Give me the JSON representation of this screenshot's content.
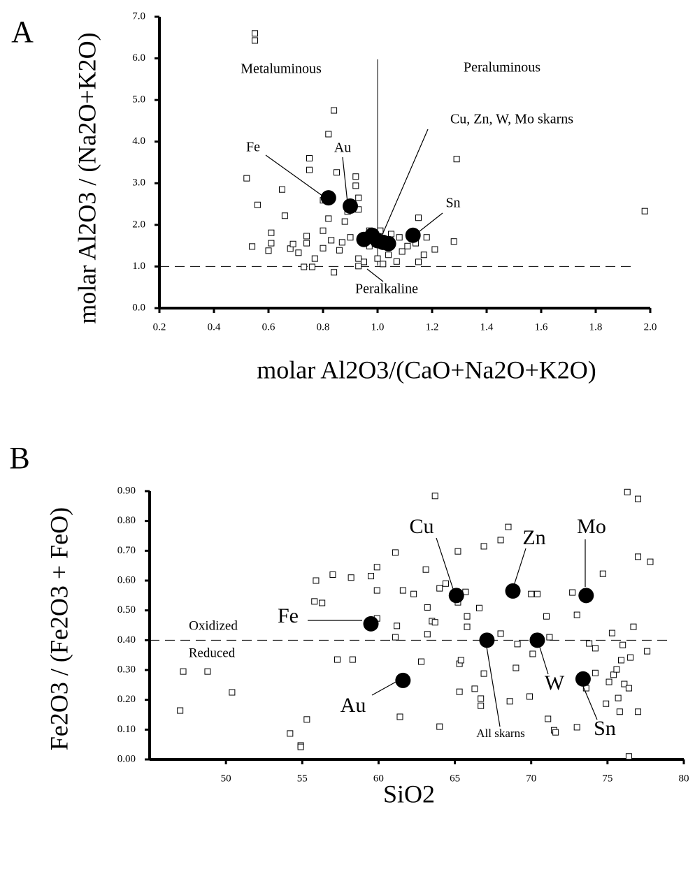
{
  "chart_data": [
    {
      "type": "scatter",
      "title": "A",
      "x_label": "molar Al2O3/(CaO+Na2O+K2O)",
      "y_label": "molar Al2O3 / (Na2O+K2O)",
      "xlim": [
        0.2,
        2.0
      ],
      "ylim": [
        0,
        7
      ],
      "xticks": [
        0.2,
        0.4,
        0.6,
        0.8,
        {
          "value": 1,
          "label": "1.0"
        },
        1.2,
        1.4,
        1.6,
        1.8,
        {
          "value": 2,
          "label": "2.0"
        }
      ],
      "yticks": [
        {
          "value": 0,
          "label": "0.0"
        },
        {
          "value": 1,
          "label": "1.0"
        },
        {
          "value": 2,
          "label": "2.0"
        },
        {
          "value": 3,
          "label": "3.0"
        },
        {
          "value": 4,
          "label": "4.0"
        },
        {
          "value": 5,
          "label": "5.0"
        },
        {
          "value": 6,
          "label": "6.0"
        },
        {
          "value": 7,
          "label": "7.0"
        }
      ],
      "reference_lines": {
        "y": [
          1.0
        ],
        "x": [
          1.0
        ]
      },
      "annotations": [
        "Metaluminous",
        "Peraluminous",
        "Cu, Zn, W, Mo skarns",
        "Fe",
        "Au",
        "Sn",
        "Peralkaline"
      ],
      "series": [
        {
          "marker": "square",
          "color": "#000000",
          "x": [
            0.55,
            0.55,
            0.84,
            0.82,
            0.75,
            0.75,
            0.52,
            1.29,
            0.85,
            0.92,
            0.92,
            0.65,
            0.56,
            0.66,
            0.93,
            0.8,
            0.89,
            0.93,
            0.82,
            0.61,
            0.88,
            1.15,
            1.28,
            1.98,
            0.54,
            0.6,
            0.68,
            0.74,
            0.8,
            0.71,
            0.73,
            0.76,
            0.77,
            0.8,
            0.84,
            0.86,
            0.83,
            0.87,
            0.9,
            0.93,
            0.95,
            0.97,
            1.0,
            1.02,
            1.04,
            1.07,
            1.09,
            1.11,
            1.14,
            1.17,
            1.18,
            1.21,
            1.15,
            0.97,
            1.01,
            1.05,
            1.08,
            0.93,
            0.74,
            0.69,
            0.61
          ],
          "values": [
            6.6,
            6.43,
            4.75,
            4.18,
            3.6,
            3.32,
            3.12,
            3.58,
            3.26,
            3.16,
            2.94,
            2.85,
            2.48,
            2.22,
            2.65,
            2.59,
            2.32,
            2.37,
            2.15,
            1.81,
            2.08,
            2.17,
            1.6,
            2.33,
            1.48,
            1.38,
            1.43,
            1.73,
            1.86,
            1.33,
            0.99,
            0.99,
            1.19,
            1.44,
            0.86,
            1.39,
            1.63,
            1.58,
            1.7,
            1.19,
            1.11,
            1.49,
            1.19,
            1.06,
            1.28,
            1.12,
            1.36,
            1.49,
            1.56,
            1.28,
            1.7,
            1.41,
            1.11,
            1.86,
            1.86,
            1.78,
            1.7,
            1.01,
            1.56,
            1.54,
            1.56
          ]
        },
        {
          "marker": "circle",
          "color": "#000000",
          "x": [
            0.82,
            0.9,
            1.13,
            0.95,
            0.98,
            1.0,
            1.02,
            1.04
          ],
          "values": [
            2.65,
            2.45,
            1.75,
            1.65,
            1.75,
            1.62,
            1.58,
            1.55
          ]
        }
      ]
    },
    {
      "type": "scatter",
      "title": "B",
      "x_label": "SiO2",
      "y_label": "Fe2O3 / (Fe2O3 + FeO)",
      "xlim": [
        45,
        80
      ],
      "ylim": [
        0,
        0.9
      ],
      "xticks": [
        50,
        55,
        60,
        65,
        70,
        75,
        80
      ],
      "yticks": [
        {
          "value": 0,
          "label": "0.00"
        },
        {
          "value": 0.1,
          "label": "0.10"
        },
        {
          "value": 0.2,
          "label": "0.20"
        },
        {
          "value": 0.3,
          "label": "0.30"
        },
        {
          "value": 0.4,
          "label": "0.40"
        },
        {
          "value": 0.5,
          "label": "0.50"
        },
        {
          "value": 0.6,
          "label": "0.60"
        },
        {
          "value": 0.7,
          "label": "0.70"
        },
        {
          "value": 0.8,
          "label": "0.80"
        },
        {
          "value": 0.9,
          "label": "0.90"
        }
      ],
      "reference_lines": {
        "y": [
          0.4
        ],
        "x": []
      },
      "annotations": [
        "Oxidized",
        "Reduced",
        "Fe",
        "Cu",
        "Zn",
        "Mo",
        "W",
        "Sn",
        "Au",
        "All skarns"
      ],
      "series": [
        {
          "marker": "square",
          "color": "#000000",
          "x": [
            47.2,
            48.8,
            47.0,
            50.4,
            54.2,
            54.9,
            54.9,
            55.3,
            55.9,
            55.8,
            56.3,
            57.0,
            57.3,
            58.3,
            58.2,
            59.5,
            59.9,
            59.9,
            59.9,
            61.1,
            61.1,
            61.2,
            61.4,
            61.6,
            62.3,
            62.8,
            63.1,
            63.2,
            63.2,
            63.5,
            63.7,
            63.7,
            64.0,
            64.0,
            64.4,
            65.2,
            65.2,
            65.3,
            65.4,
            65.3,
            65.7,
            65.8,
            65.8,
            66.3,
            66.6,
            66.7,
            66.7,
            66.9,
            66.9,
            68.0,
            68.0,
            68.5,
            68.6,
            69.0,
            69.1,
            69.9,
            70.0,
            70.4,
            70.1,
            71.0,
            71.2,
            71.1,
            71.5,
            71.6,
            73.0,
            73.0,
            72.7,
            73.6,
            73.8,
            74.2,
            74.2,
            74.7,
            74.9,
            75.1,
            75.3,
            75.4,
            75.6,
            75.7,
            75.8,
            75.9,
            76.0,
            76.1,
            76.3,
            76.4,
            76.5,
            76.4,
            76.7,
            77.0,
            77.0,
            77.0,
            77.6,
            77.8
          ],
          "values": [
            0.295,
            0.295,
            0.164,
            0.225,
            0.087,
            0.047,
            0.042,
            0.134,
            0.6,
            0.53,
            0.525,
            0.62,
            0.335,
            0.335,
            0.61,
            0.615,
            0.567,
            0.645,
            0.473,
            0.694,
            0.41,
            0.448,
            0.143,
            0.567,
            0.555,
            0.328,
            0.637,
            0.42,
            0.51,
            0.464,
            0.46,
            0.884,
            0.574,
            0.11,
            0.59,
            0.698,
            0.527,
            0.321,
            0.333,
            0.227,
            0.562,
            0.48,
            0.445,
            0.237,
            0.508,
            0.204,
            0.18,
            0.715,
            0.288,
            0.736,
            0.422,
            0.78,
            0.195,
            0.307,
            0.387,
            0.211,
            0.555,
            0.555,
            0.354,
            0.48,
            0.41,
            0.136,
            0.098,
            0.091,
            0.108,
            0.485,
            0.56,
            0.239,
            0.389,
            0.373,
            0.29,
            0.623,
            0.187,
            0.26,
            0.424,
            0.284,
            0.302,
            0.206,
            0.16,
            0.333,
            0.384,
            0.253,
            0.897,
            0.239,
            0.342,
            0.01,
            0.445,
            0.874,
            0.16,
            0.68,
            0.363,
            0.663
          ]
        },
        {
          "marker": "circle",
          "color": "#000000",
          "x": [
            59.5,
            61.6,
            65.1,
            68.8,
            73.6,
            70.4,
            73.4,
            67.1
          ],
          "values": [
            0.455,
            0.265,
            0.55,
            0.565,
            0.55,
            0.4,
            0.27,
            0.4
          ]
        }
      ]
    }
  ]
}
